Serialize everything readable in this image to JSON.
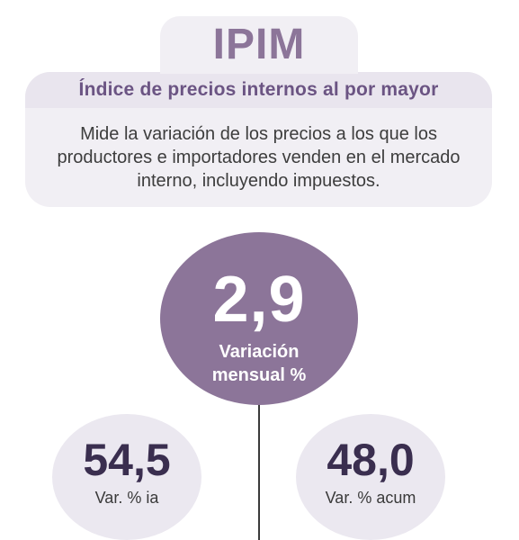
{
  "header": {
    "title": "IPIM",
    "subtitle": "Índice de precios internos al por mayor",
    "description": "Mide la variación de los precios a los que los productores e importadores venden en el mercado interno, incluyendo impuestos."
  },
  "main_indicator": {
    "value": "2,9",
    "label_line1": "Variación",
    "label_line2": "mensual %"
  },
  "secondary_indicators": [
    {
      "value": "54,5",
      "label": "Var. % ia"
    },
    {
      "value": "48,0",
      "label": "Var. % acum"
    }
  ],
  "colors": {
    "accent_purple": "#8c7599",
    "subtitle_purple": "#6b5483",
    "card_background": "#f1eff4",
    "small_circle_background": "#ebe8f0",
    "dark_value_text": "#3a2e4f"
  }
}
